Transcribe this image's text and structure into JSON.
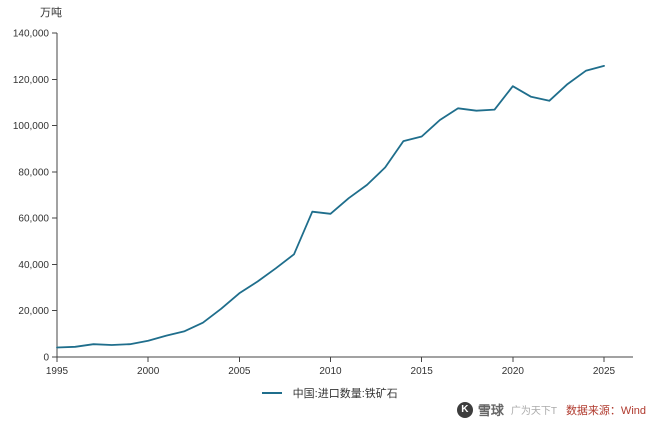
{
  "chart_data": {
    "type": "line",
    "unit": "万吨",
    "legend": "中国:进口数量:铁矿石",
    "line_color": "#1f6e8c",
    "axis_color": "#444444",
    "grid": false,
    "legend_position": "bottom-center",
    "x": [
      1995,
      1996,
      1997,
      1998,
      1999,
      2000,
      2001,
      2002,
      2003,
      2004,
      2005,
      2006,
      2007,
      2008,
      2009,
      2010,
      2011,
      2012,
      2013,
      2014,
      2015,
      2016,
      2017,
      2018,
      2019,
      2020,
      2021,
      2022,
      2023,
      2024,
      2025
    ],
    "values": [
      4114,
      4387,
      5511,
      5177,
      5527,
      6997,
      9231,
      11149,
      14813,
      20808,
      27526,
      32630,
      38309,
      44356,
      62778,
      61864,
      68606,
      74355,
      81941,
      93269,
      95272,
      102412,
      107474,
      106447,
      106895,
      117010,
      112432,
      110686,
      117906,
      123672,
      125800
    ],
    "x_ticks": [
      1995,
      2000,
      2005,
      2010,
      2015,
      2020,
      2025
    ],
    "y_tick_values": [
      0,
      20000,
      40000,
      60000,
      80000,
      100000,
      120000,
      140000
    ],
    "y_tick_labels": [
      "0",
      "20,000",
      "40,000",
      "60,000",
      "80,000",
      "100,000",
      "120,000",
      "140,000"
    ],
    "ylim": [
      0,
      140000
    ]
  },
  "footer": {
    "logo_glyph": "K",
    "brand": "雪球",
    "username": "广为天下T",
    "source": "数据来源：Wind",
    "source_color": "#b03a2e"
  }
}
